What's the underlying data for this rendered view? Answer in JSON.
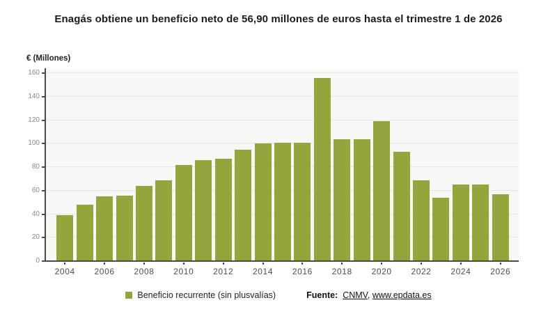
{
  "title": "Enagás obtiene un beneficio neto de 56,90 millones de euros hasta el trimestre 1 de 2026",
  "y_axis_title": "€ (Millones)",
  "legend": {
    "label": "Beneficio recurrente (sin plusvalías)"
  },
  "source": {
    "prefix": "Fuente:",
    "link1": "CNMV",
    "separator": ", ",
    "link2": "www.epdata.es"
  },
  "colors": {
    "bar": "#93a53b",
    "plot_bg": "#f7f7f5",
    "grid": "#e4e4e2",
    "axis": "#4a4a4a"
  },
  "chart_data": {
    "type": "bar",
    "title": "Enagás obtiene un beneficio neto de 56,90 millones de euros hasta el trimestre 1 de 2026",
    "categories": [
      2004,
      2005,
      2006,
      2007,
      2008,
      2009,
      2010,
      2011,
      2012,
      2013,
      2014,
      2015,
      2016,
      2017,
      2018,
      2019,
      2020,
      2021,
      2022,
      2023,
      2024,
      2025,
      2026
    ],
    "values": [
      39,
      48,
      55,
      56,
      64,
      69,
      82,
      86,
      87,
      95,
      100,
      101,
      101,
      156,
      104,
      104,
      119,
      93,
      69,
      54,
      65,
      65,
      56.9
    ],
    "series_name": "Beneficio recurrente (sin plusvalías)",
    "xlabel": "",
    "ylabel": "€ (Millones)",
    "ylim": [
      0,
      160
    ],
    "ytick_step": 20,
    "x_label_every_years": 2,
    "grid": true,
    "legend_position": "bottom"
  }
}
